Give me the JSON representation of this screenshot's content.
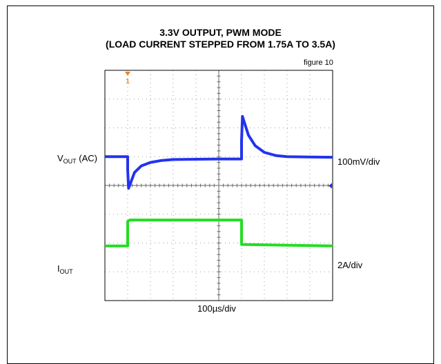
{
  "title_line1": "3.3V OUTPUT, PWM MODE",
  "title_line2": "(LOAD CURRENT STEPPED FROM 1.75A TO 3.5A)",
  "figure_note": "figure 10",
  "channel_marker": "1",
  "labels": {
    "vout_main": "V",
    "vout_sub": "OUT",
    "vout_suffix": " (AC)",
    "iout_main": "I",
    "iout_sub": "OUT",
    "vout_scale": "100mV/div",
    "iout_scale": "2A/div",
    "time_scale": "100µs/div"
  },
  "colors": {
    "vout_trace": "#2233ee",
    "iout_trace": "#22dd22",
    "marker": "#f08020"
  },
  "chart_data": {
    "type": "line",
    "grid": true,
    "grid_divisions": {
      "x": 10,
      "y": 8
    },
    "x_unit": "div",
    "y_unit": "div",
    "xlim": [
      0,
      10
    ],
    "ylim": [
      -4,
      4
    ],
    "series": [
      {
        "name": "VOUT (AC)",
        "scale": "100mV/div",
        "x": [
          0,
          1.0,
          1.0,
          1.04,
          1.3,
          1.6,
          2.0,
          2.5,
          3.0,
          4.0,
          5.0,
          6.0,
          6.0,
          6.04,
          6.3,
          6.6,
          7.0,
          7.5,
          8.0,
          9.0,
          10.0
        ],
        "y": [
          1.0,
          1.0,
          0.55,
          -0.1,
          0.45,
          0.68,
          0.8,
          0.87,
          0.9,
          0.91,
          0.92,
          0.92,
          1.55,
          2.4,
          1.75,
          1.38,
          1.15,
          1.04,
          1.0,
          0.99,
          0.98
        ]
      },
      {
        "name": "IOUT",
        "scale": "2A/div",
        "x": [
          0,
          1.0,
          1.0,
          1.1,
          6.0,
          6.0,
          10.0
        ],
        "y": [
          -2.1,
          -2.1,
          -1.25,
          -1.2,
          -1.2,
          -2.05,
          -2.1
        ]
      }
    ]
  }
}
